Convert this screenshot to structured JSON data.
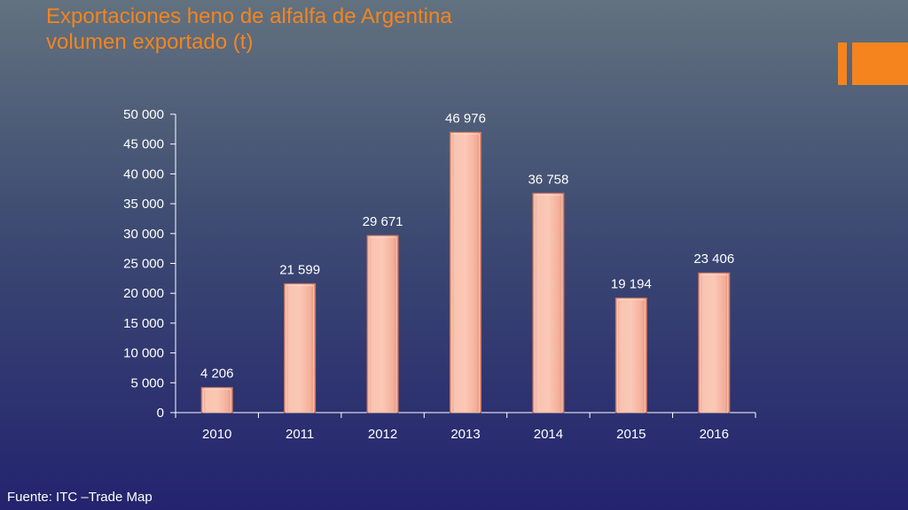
{
  "slide": {
    "title_line1": "Exportaciones heno de alfalfa de Argentina",
    "title_line2": "volumen exportado (t)",
    "source": "Fuente: ITC –Trade Map",
    "accent_color": "#f5841f"
  },
  "chart_data": {
    "type": "bar",
    "title": "",
    "xlabel": "",
    "ylabel": "",
    "categories": [
      "2010",
      "2011",
      "2012",
      "2013",
      "2014",
      "2015",
      "2016"
    ],
    "values": [
      4206,
      21599,
      29671,
      46976,
      36758,
      19194,
      23406
    ],
    "data_labels": [
      "4 206",
      "21 599",
      "29 671",
      "46 976",
      "36 758",
      "19 194",
      "23 406"
    ],
    "ylim": [
      0,
      50000
    ],
    "yticks": [
      0,
      5000,
      10000,
      15000,
      20000,
      25000,
      30000,
      35000,
      40000,
      45000,
      50000
    ],
    "ytick_labels": [
      "0",
      "5 000",
      "10 000",
      "15 000",
      "20 000",
      "25 000",
      "30 000",
      "35 000",
      "40 000",
      "45 000",
      "50 000"
    ],
    "grid": false,
    "legend": "none",
    "bar_color": "#f5b7a3"
  }
}
